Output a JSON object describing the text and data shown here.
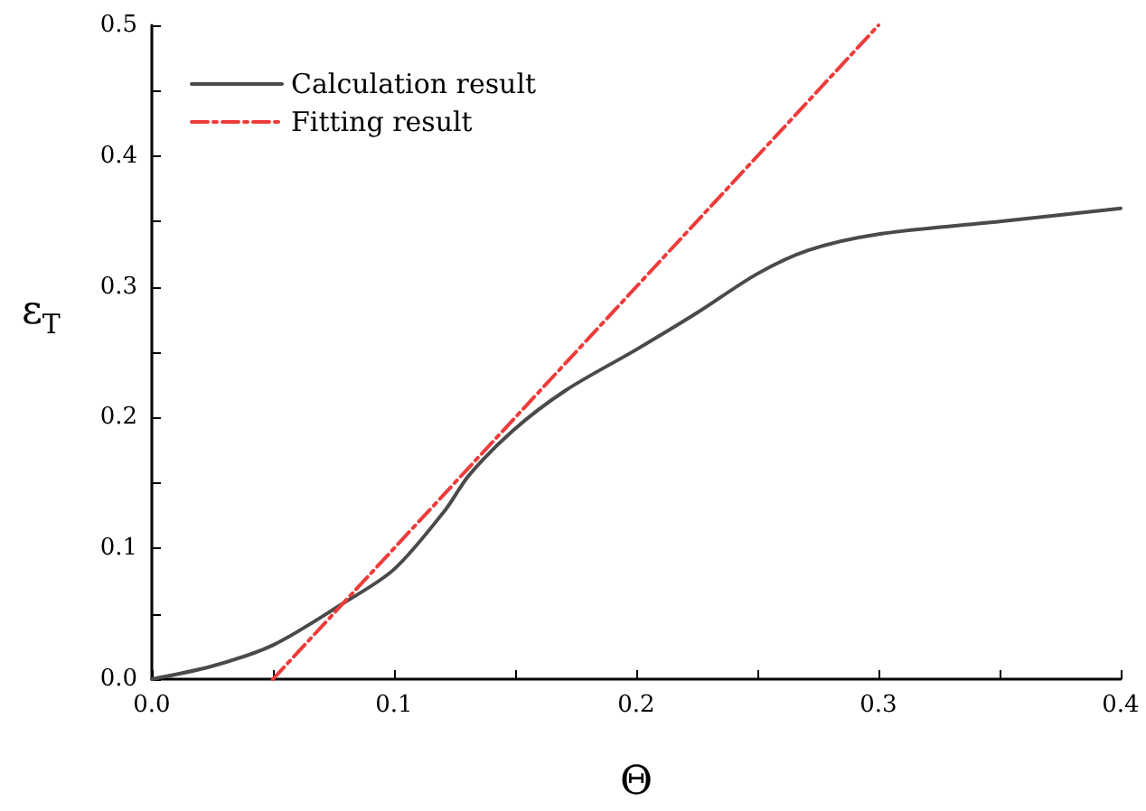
{
  "chart_data": {
    "type": "line",
    "xlabel": "Θ",
    "ylabel": "ε$_{T}$",
    "xlim": [
      0,
      0.4
    ],
    "ylim": [
      0,
      0.5
    ],
    "xticks": [
      {
        "value": 0,
        "label": "0.0"
      },
      {
        "value": 0.05,
        "label": null
      },
      {
        "value": 0.1,
        "label": "0.1"
      },
      {
        "value": 0.15,
        "label": null
      },
      {
        "value": 0.2,
        "label": "0.2"
      },
      {
        "value": 0.25,
        "label": null
      },
      {
        "value": 0.3,
        "label": "0.3"
      },
      {
        "value": 0.35,
        "label": null
      },
      {
        "value": 0.4,
        "label": "0.4"
      }
    ],
    "yticks": [
      {
        "value": 0,
        "label": "0.0"
      },
      {
        "value": 0.05,
        "label": null
      },
      {
        "value": 0.1,
        "label": "0.1"
      },
      {
        "value": 0.15,
        "label": null
      },
      {
        "value": 0.2,
        "label": "0.2"
      },
      {
        "value": 0.25,
        "label": null
      },
      {
        "value": 0.3,
        "label": "0.3"
      },
      {
        "value": 0.35,
        "label": null
      },
      {
        "value": 0.4,
        "label": "0.4"
      },
      {
        "value": 0.45,
        "label": null
      },
      {
        "value": 0.5,
        "label": "0.5"
      }
    ],
    "grid": false,
    "legend": "top left",
    "marker": "none",
    "series": [
      {
        "name": "Calculation result",
        "color": "#4a4a4a",
        "line_style": "solid",
        "x": [
          0,
          0.025,
          0.05,
          0.079,
          0.1,
          0.121,
          0.131,
          0.149,
          0.171,
          0.2,
          0.225,
          0.25,
          0.271,
          0.299,
          0.35,
          0.4
        ],
        "values": [
          0,
          0.01,
          0.026,
          0.058,
          0.084,
          0.129,
          0.156,
          0.19,
          0.221,
          0.252,
          0.28,
          0.31,
          0.328,
          0.34,
          0.35,
          0.36
        ]
      },
      {
        "name": "Fitting result",
        "color": "#ee3b3b",
        "line_style": "dashed",
        "x": [
          0.05,
          0.3
        ],
        "values": [
          0,
          0.5
        ]
      }
    ]
  }
}
